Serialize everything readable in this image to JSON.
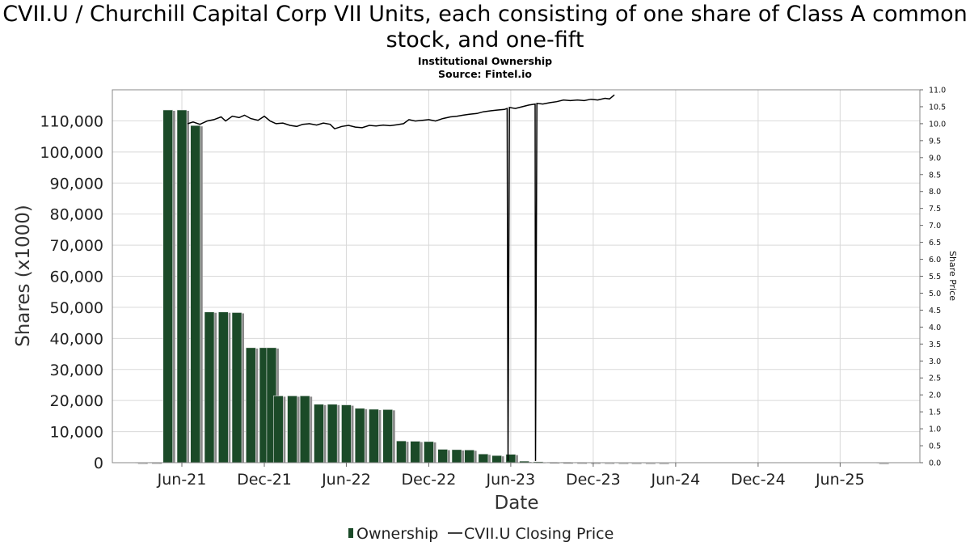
{
  "title": "CVII.U / Churchill Capital Corp VII Units, each consisting of one share of Class A common stock, and one-fift",
  "subtitle_line1": "Institutional Ownership",
  "subtitle_line2": "Source: Fintel.io",
  "colors": {
    "bar": "#1b4a28",
    "bar_shadow": "#8a8a8a",
    "price_line": "#000000",
    "grid": "#d9d9d9",
    "frame": "#888888"
  },
  "chart_data": {
    "type": "bar",
    "xlabel": "Date",
    "ylabel": "Shares (x1000)",
    "y2label": "Share Price",
    "ylim": [
      0,
      120000
    ],
    "y2lim": [
      0,
      11.0
    ],
    "grid": true,
    "legend_placement": "bottom-center",
    "x_ticks": [
      "Jun-21",
      "Dec-21",
      "Jun-22",
      "Dec-22",
      "Jun-23",
      "Dec-23",
      "Jun-24",
      "Dec-24",
      "Jun-25"
    ],
    "y_ticks": [
      "0",
      "10,000",
      "20,000",
      "30,000",
      "40,000",
      "50,000",
      "60,000",
      "70,000",
      "80,000",
      "90,000",
      "100,000",
      "110,000"
    ],
    "y2_ticks": [
      "0.0",
      "0.5",
      "1.0",
      "1.5",
      "2.0",
      "2.5",
      "3.0",
      "3.5",
      "4.0",
      "4.5",
      "5.0",
      "5.5",
      "6.0",
      "6.5",
      "7.0",
      "7.5",
      "8.0",
      "8.5",
      "9.0",
      "9.5",
      "10.0",
      "10.5",
      "11.0"
    ],
    "series": [
      {
        "name": "Ownership",
        "type": "bar",
        "dates": [
          "2021-03-15",
          "2021-04-15",
          "2021-05-15",
          "2021-06-15",
          "2021-07-15",
          "2021-08-15",
          "2021-09-15",
          "2021-10-15",
          "2021-11-15",
          "2021-12-15",
          "2021-12-31",
          "2022-01-15",
          "2022-02-15",
          "2022-03-15",
          "2022-04-15",
          "2022-05-15",
          "2022-06-15",
          "2022-07-15",
          "2022-08-15",
          "2022-09-15",
          "2022-10-15",
          "2022-11-15",
          "2022-12-15",
          "2023-01-15",
          "2023-02-15",
          "2023-03-15",
          "2023-04-15",
          "2023-05-15",
          "2023-06-15",
          "2023-07-15",
          "2023-08-15",
          "2023-09-15",
          "2023-10-15",
          "2023-11-15",
          "2023-12-15",
          "2024-01-15",
          "2024-02-15",
          "2024-03-15",
          "2024-04-15",
          "2024-05-15",
          "2025-09-15"
        ],
        "values": [
          80,
          110,
          113500,
          113500,
          108500,
          48500,
          48500,
          48300,
          37000,
          37000,
          37000,
          21500,
          21500,
          21500,
          18800,
          18800,
          18600,
          17500,
          17200,
          17100,
          7000,
          6900,
          6800,
          4300,
          4200,
          4100,
          2800,
          2300,
          2700,
          500,
          300,
          200,
          150,
          120,
          100,
          80,
          60,
          50,
          40,
          30,
          20
        ]
      },
      {
        "name": "CVII.U Closing Price",
        "type": "line",
        "points": [
          [
            "2021-06-28",
            10.0
          ],
          [
            "2021-07-10",
            10.05
          ],
          [
            "2021-07-25",
            9.98
          ],
          [
            "2021-08-10",
            10.08
          ],
          [
            "2021-08-25",
            10.12
          ],
          [
            "2021-09-10",
            10.2
          ],
          [
            "2021-09-20",
            10.08
          ],
          [
            "2021-10-05",
            10.22
          ],
          [
            "2021-10-20",
            10.18
          ],
          [
            "2021-11-01",
            10.25
          ],
          [
            "2021-11-15",
            10.15
          ],
          [
            "2021-12-01",
            10.1
          ],
          [
            "2021-12-15",
            10.22
          ],
          [
            "2021-12-28",
            10.08
          ],
          [
            "2022-01-10",
            10.0
          ],
          [
            "2022-01-25",
            10.02
          ],
          [
            "2022-02-10",
            9.95
          ],
          [
            "2022-02-25",
            9.92
          ],
          [
            "2022-03-10",
            9.98
          ],
          [
            "2022-03-25",
            10.0
          ],
          [
            "2022-04-10",
            9.96
          ],
          [
            "2022-04-25",
            10.02
          ],
          [
            "2022-05-10",
            9.98
          ],
          [
            "2022-05-20",
            9.85
          ],
          [
            "2022-06-05",
            9.92
          ],
          [
            "2022-06-20",
            9.95
          ],
          [
            "2022-07-05",
            9.9
          ],
          [
            "2022-07-20",
            9.88
          ],
          [
            "2022-08-05",
            9.95
          ],
          [
            "2022-08-20",
            9.93
          ],
          [
            "2022-09-05",
            9.96
          ],
          [
            "2022-09-20",
            9.94
          ],
          [
            "2022-10-05",
            9.97
          ],
          [
            "2022-10-20",
            10.0
          ],
          [
            "2022-11-01",
            10.12
          ],
          [
            "2022-11-15",
            10.08
          ],
          [
            "2022-12-01",
            10.1
          ],
          [
            "2022-12-15",
            10.12
          ],
          [
            "2022-12-30",
            10.08
          ],
          [
            "2023-01-15",
            10.15
          ],
          [
            "2023-02-01",
            10.2
          ],
          [
            "2023-02-15",
            10.22
          ],
          [
            "2023-03-01",
            10.25
          ],
          [
            "2023-03-15",
            10.28
          ],
          [
            "2023-04-01",
            10.3
          ],
          [
            "2023-04-15",
            10.35
          ],
          [
            "2023-05-01",
            10.38
          ],
          [
            "2023-05-15",
            10.4
          ],
          [
            "2023-06-01",
            10.42
          ],
          [
            "2023-06-07",
            10.45
          ],
          [
            "2023-06-09",
            0.05
          ],
          [
            "2023-06-12",
            10.48
          ],
          [
            "2023-06-25",
            10.45
          ],
          [
            "2023-07-10",
            10.5
          ],
          [
            "2023-07-25",
            10.55
          ],
          [
            "2023-08-08",
            10.58
          ],
          [
            "2023-08-09",
            0.05
          ],
          [
            "2023-08-12",
            10.6
          ],
          [
            "2023-08-25",
            10.58
          ],
          [
            "2023-09-10",
            10.62
          ],
          [
            "2023-09-25",
            10.65
          ],
          [
            "2023-10-10",
            10.7
          ],
          [
            "2023-10-25",
            10.68
          ],
          [
            "2023-11-10",
            10.7
          ],
          [
            "2023-11-25",
            10.68
          ],
          [
            "2023-12-10",
            10.72
          ],
          [
            "2023-12-25",
            10.7
          ],
          [
            "2024-01-10",
            10.75
          ],
          [
            "2024-01-20",
            10.73
          ],
          [
            "2024-01-31",
            10.85
          ]
        ]
      }
    ]
  }
}
